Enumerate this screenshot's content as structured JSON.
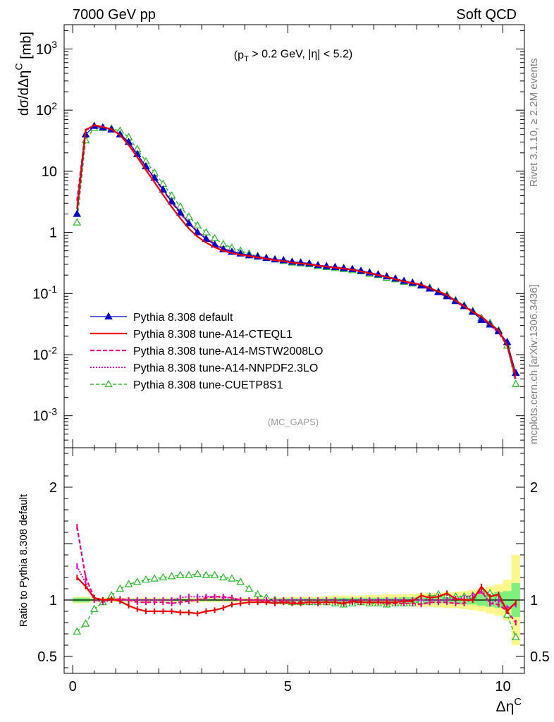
{
  "header": {
    "left": "7000 GeV pp",
    "right": "Soft QCD"
  },
  "cut_label": "(p_T > 0.2 GeV, |η| < 5.2)",
  "analysis_tag": "(MC_GAPS)",
  "side_text": {
    "rivet": "Rivet 3.1.10, ≥ 2.2M events",
    "mcplots": "mcplots.cern.ch [arXiv:1306.3436]"
  },
  "axes": {
    "ylabel_main": "dσ/dΔη^C [mb]",
    "ylabel_ratio": "Ratio to Pythia 8.308 default",
    "xlabel": "Δη^C"
  },
  "colors": {
    "default": "#0000cc",
    "cteql1": "#ee0000",
    "mstw": "#ee0088",
    "nnpdf": "#dd00dd",
    "cuetp8s1": "#22bb22",
    "band_inner": "#7ef07e",
    "band_outer": "#fbf78a"
  },
  "legend": [
    {
      "key": "default",
      "label": "Pythia 8.308 default"
    },
    {
      "key": "cteql1",
      "label": "Pythia 8.308 tune-A14-CTEQL1"
    },
    {
      "key": "mstw",
      "label": "Pythia 8.308 tune-A14-MSTW2008LO"
    },
    {
      "key": "nnpdf",
      "label": "Pythia 8.308 tune-A14-NNPDF2.3LO"
    },
    {
      "key": "cuetp8s1",
      "label": "Pythia 8.308 tune-CUETP8S1"
    }
  ],
  "chart_data": [
    {
      "type": "line",
      "panel": "main",
      "log_y": true,
      "xlim": [
        -0.2,
        10.5
      ],
      "ylim": [
        0.0003,
        2500
      ],
      "y_ticks": [
        {
          "v": 0.001,
          "label": "10^-3"
        },
        {
          "v": 0.01,
          "label": "10^-2"
        },
        {
          "v": 0.1,
          "label": "10^-1"
        },
        {
          "v": 1,
          "label": "1"
        },
        {
          "v": 10,
          "label": "10"
        },
        {
          "v": 100,
          "label": "10^2"
        },
        {
          "v": 1000,
          "label": "10^3"
        }
      ],
      "x_ticks": [
        0,
        5,
        10
      ],
      "x": [
        0.1,
        0.3,
        0.5,
        0.7,
        0.9,
        1.1,
        1.3,
        1.5,
        1.7,
        1.9,
        2.1,
        2.3,
        2.5,
        2.7,
        2.9,
        3.1,
        3.3,
        3.5,
        3.7,
        3.9,
        4.1,
        4.3,
        4.5,
        4.7,
        4.9,
        5.1,
        5.3,
        5.5,
        5.7,
        5.9,
        6.1,
        6.3,
        6.5,
        6.7,
        6.9,
        7.1,
        7.3,
        7.5,
        7.7,
        7.9,
        8.1,
        8.3,
        8.5,
        8.7,
        8.9,
        9.1,
        9.3,
        9.5,
        9.7,
        9.9,
        10.1,
        10.3
      ],
      "series": [
        {
          "name": "Pythia 8.308 default",
          "key": "default",
          "values": [
            2.0,
            40,
            55,
            52,
            48,
            40,
            30,
            19,
            12,
            7.8,
            5.0,
            3.2,
            2.1,
            1.4,
            1.0,
            0.78,
            0.63,
            0.53,
            0.48,
            0.45,
            0.42,
            0.4,
            0.38,
            0.36,
            0.35,
            0.33,
            0.32,
            0.31,
            0.29,
            0.28,
            0.27,
            0.26,
            0.25,
            0.235,
            0.22,
            0.205,
            0.19,
            0.175,
            0.16,
            0.15,
            0.135,
            0.12,
            0.105,
            0.09,
            0.075,
            0.062,
            0.05,
            0.037,
            0.031,
            0.024,
            0.016,
            0.005
          ]
        },
        {
          "name": "Pythia 8.308 tune-A14-CTEQL1",
          "key": "cteql1",
          "values": [
            2.4,
            47,
            57,
            53,
            49,
            39,
            27,
            17,
            10.5,
            6.6,
            4.1,
            2.6,
            1.7,
            1.15,
            0.85,
            0.68,
            0.57,
            0.5,
            0.46,
            0.43,
            0.41,
            0.39,
            0.37,
            0.35,
            0.34,
            0.32,
            0.31,
            0.3,
            0.285,
            0.275,
            0.265,
            0.255,
            0.245,
            0.23,
            0.215,
            0.2,
            0.187,
            0.172,
            0.158,
            0.148,
            0.14,
            0.123,
            0.108,
            0.095,
            0.076,
            0.062,
            0.05,
            0.042,
            0.032,
            0.025,
            0.014,
            0.0045
          ]
        },
        {
          "name": "Pythia 8.308 tune-A14-MSTW2008LO",
          "key": "mstw",
          "values": [
            3.3,
            48,
            56,
            52,
            48,
            40,
            29,
            18.5,
            11.8,
            7.6,
            4.9,
            3.1,
            2.05,
            1.4,
            1.02,
            0.8,
            0.65,
            0.54,
            0.49,
            0.45,
            0.42,
            0.4,
            0.38,
            0.355,
            0.345,
            0.325,
            0.315,
            0.305,
            0.285,
            0.275,
            0.265,
            0.252,
            0.245,
            0.23,
            0.215,
            0.2,
            0.185,
            0.17,
            0.155,
            0.145,
            0.13,
            0.118,
            0.103,
            0.088,
            0.073,
            0.06,
            0.051,
            0.04,
            0.03,
            0.023,
            0.014,
            0.004
          ]
        },
        {
          "name": "Pythia 8.308 tune-A14-NNPDF2.3LO",
          "key": "nnpdf",
          "values": [
            2.6,
            46,
            55,
            51,
            48,
            40,
            30,
            19,
            12,
            7.8,
            5.0,
            3.2,
            2.15,
            1.45,
            1.03,
            0.8,
            0.65,
            0.54,
            0.49,
            0.45,
            0.42,
            0.4,
            0.38,
            0.36,
            0.35,
            0.33,
            0.32,
            0.31,
            0.29,
            0.28,
            0.27,
            0.258,
            0.25,
            0.235,
            0.22,
            0.205,
            0.19,
            0.175,
            0.16,
            0.15,
            0.135,
            0.12,
            0.105,
            0.09,
            0.076,
            0.063,
            0.052,
            0.04,
            0.03,
            0.024,
            0.015,
            0.0048
          ]
        },
        {
          "name": "Pythia 8.308 tune-CUETP8S1",
          "key": "cuetp8s1",
          "values": [
            1.45,
            32,
            51,
            51,
            50,
            46,
            36,
            23,
            14.5,
            9.5,
            6.2,
            4.0,
            2.65,
            1.8,
            1.3,
            1.0,
            0.8,
            0.64,
            0.56,
            0.5,
            0.45,
            0.41,
            0.38,
            0.36,
            0.34,
            0.32,
            0.31,
            0.3,
            0.28,
            0.27,
            0.26,
            0.25,
            0.24,
            0.23,
            0.21,
            0.2,
            0.18,
            0.17,
            0.155,
            0.145,
            0.135,
            0.125,
            0.108,
            0.095,
            0.078,
            0.064,
            0.052,
            0.04,
            0.033,
            0.025,
            0.014,
            0.0033
          ]
        }
      ]
    },
    {
      "type": "line",
      "panel": "ratio",
      "log_y": false,
      "xlim": [
        -0.2,
        10.5
      ],
      "ylim": [
        0.35,
        2.35
      ],
      "y_ticks": [
        {
          "v": 0.5,
          "label": "0.5"
        },
        {
          "v": 1,
          "label": "1"
        },
        {
          "v": 2,
          "label": "2"
        }
      ],
      "x_ticks": [
        0,
        5,
        10
      ],
      "x": [
        0.1,
        0.3,
        0.5,
        0.7,
        0.9,
        1.1,
        1.3,
        1.5,
        1.7,
        1.9,
        2.1,
        2.3,
        2.5,
        2.7,
        2.9,
        3.1,
        3.3,
        3.5,
        3.7,
        3.9,
        4.1,
        4.3,
        4.5,
        4.7,
        4.9,
        5.1,
        5.3,
        5.5,
        5.7,
        5.9,
        6.1,
        6.3,
        6.5,
        6.7,
        6.9,
        7.1,
        7.3,
        7.5,
        7.7,
        7.9,
        8.1,
        8.3,
        8.5,
        8.7,
        8.9,
        9.1,
        9.3,
        9.5,
        9.7,
        9.9,
        10.1,
        10.3
      ],
      "reference": 1,
      "band_inner": [
        0.02,
        0.02,
        0.01,
        0.01,
        0.01,
        0.01,
        0.01,
        0.01,
        0.01,
        0.01,
        0.01,
        0.01,
        0.01,
        0.01,
        0.01,
        0.01,
        0.01,
        0.01,
        0.01,
        0.01,
        0.01,
        0.01,
        0.01,
        0.01,
        0.015,
        0.015,
        0.015,
        0.015,
        0.015,
        0.015,
        0.02,
        0.02,
        0.02,
        0.02,
        0.02,
        0.02,
        0.02,
        0.02,
        0.025,
        0.025,
        0.025,
        0.03,
        0.03,
        0.03,
        0.035,
        0.04,
        0.04,
        0.05,
        0.06,
        0.07,
        0.08,
        0.15
      ],
      "band_outer": [
        0.03,
        0.03,
        0.02,
        0.02,
        0.02,
        0.02,
        0.02,
        0.02,
        0.02,
        0.02,
        0.02,
        0.02,
        0.02,
        0.02,
        0.02,
        0.02,
        0.02,
        0.02,
        0.02,
        0.02,
        0.02,
        0.02,
        0.02,
        0.02,
        0.025,
        0.03,
        0.03,
        0.03,
        0.03,
        0.035,
        0.04,
        0.04,
        0.04,
        0.04,
        0.045,
        0.045,
        0.05,
        0.05,
        0.05,
        0.055,
        0.06,
        0.06,
        0.065,
        0.07,
        0.07,
        0.08,
        0.09,
        0.1,
        0.12,
        0.14,
        0.18,
        0.4
      ],
      "series": [
        {
          "name": "Pythia 8.308 tune-A14-CTEQL1",
          "key": "cteql1",
          "values": [
            1.2,
            1.12,
            1.02,
            1.0,
            1.01,
            0.99,
            0.95,
            0.92,
            0.9,
            0.9,
            0.9,
            0.9,
            0.89,
            0.89,
            0.88,
            0.9,
            0.91,
            0.93,
            0.96,
            0.97,
            0.98,
            0.98,
            0.98,
            0.97,
            0.98,
            0.97,
            0.97,
            0.98,
            0.98,
            0.98,
            0.98,
            0.97,
            0.99,
            0.98,
            0.98,
            0.98,
            0.98,
            0.98,
            0.99,
            0.99,
            1.04,
            1.02,
            1.03,
            1.06,
            1.01,
            1.0,
            1.0,
            1.12,
            1.03,
            1.05,
            0.9,
            0.98
          ]
        },
        {
          "name": "Pythia 8.308 tune-A14-MSTW2008LO",
          "key": "mstw",
          "values": [
            1.65,
            1.2,
            1.02,
            1.0,
            1.0,
            1.01,
            1.0,
            0.98,
            0.98,
            0.98,
            0.98,
            0.97,
            0.98,
            0.99,
            1.0,
            1.02,
            1.03,
            1.03,
            1.02,
            1.0,
            1.0,
            1.0,
            0.99,
            0.99,
            0.99,
            0.98,
            0.98,
            0.98,
            0.97,
            0.98,
            0.98,
            0.97,
            0.98,
            0.98,
            0.98,
            0.98,
            0.97,
            0.97,
            0.97,
            0.97,
            0.96,
            0.98,
            0.98,
            0.98,
            0.97,
            0.97,
            1.02,
            1.08,
            0.97,
            0.96,
            0.9,
            0.8
          ]
        },
        {
          "name": "Pythia 8.308 tune-A14-NNPDF2.3LO",
          "key": "nnpdf",
          "values": [
            1.3,
            1.15,
            1.0,
            0.98,
            1.0,
            1.0,
            1.0,
            1.0,
            1.0,
            1.0,
            1.0,
            1.0,
            1.02,
            1.03,
            1.03,
            1.03,
            1.03,
            1.02,
            1.02,
            1.0,
            1.0,
            1.0,
            1.0,
            1.0,
            1.0,
            1.0,
            1.0,
            1.0,
            1.0,
            1.0,
            1.0,
            0.99,
            1.0,
            1.0,
            1.0,
            1.0,
            1.0,
            1.0,
            1.0,
            1.0,
            1.0,
            1.0,
            1.0,
            1.0,
            1.01,
            1.02,
            1.04,
            1.08,
            0.97,
            1.0,
            0.93,
            0.96
          ]
        },
        {
          "name": "Pythia 8.308 tune-CUETP8S1",
          "key": "cuetp8s1",
          "values": [
            0.72,
            0.79,
            0.92,
            0.98,
            1.04,
            1.1,
            1.14,
            1.16,
            1.18,
            1.19,
            1.2,
            1.21,
            1.22,
            1.22,
            1.23,
            1.22,
            1.22,
            1.2,
            1.19,
            1.16,
            1.1,
            1.05,
            1.02,
            1.0,
            0.99,
            0.98,
            0.98,
            0.98,
            0.98,
            0.98,
            0.97,
            0.96,
            0.97,
            0.98,
            0.97,
            0.97,
            0.96,
            0.97,
            0.97,
            0.97,
            0.99,
            1.03,
            1.05,
            1.04,
            1.03,
            1.03,
            1.04,
            1.08,
            1.06,
            1.03,
            0.87,
            0.67
          ]
        }
      ]
    }
  ]
}
